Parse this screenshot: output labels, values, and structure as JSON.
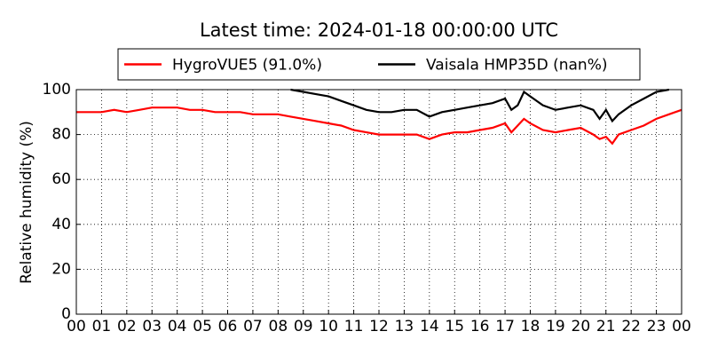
{
  "chart_data": {
    "type": "line",
    "title": "Latest time: 2024-01-18 00:00:00 UTC",
    "ylabel": "Relative humidity (%)",
    "x": [
      0,
      0.5,
      1,
      1.5,
      2,
      2.5,
      3,
      3.5,
      4,
      4.5,
      5,
      5.5,
      6,
      6.5,
      7,
      7.5,
      8,
      8.5,
      9,
      9.5,
      10,
      10.5,
      11,
      11.5,
      12,
      12.5,
      13,
      13.5,
      14,
      14.5,
      15,
      15.5,
      16,
      16.5,
      17,
      17.25,
      17.5,
      17.75,
      18,
      18.5,
      19,
      19.5,
      20,
      20.5,
      20.75,
      21,
      21.25,
      21.5,
      22,
      22.5,
      23,
      23.5,
      24
    ],
    "series": [
      {
        "name": "HygroVUE5 (91.0%)",
        "color": "#ff0000",
        "values": [
          90,
          90,
          90,
          91,
          90,
          91,
          92,
          92,
          92,
          91,
          91,
          90,
          90,
          90,
          89,
          89,
          89,
          88,
          87,
          86,
          85,
          84,
          82,
          81,
          80,
          80,
          80,
          80,
          78,
          80,
          81,
          81,
          82,
          83,
          85,
          81,
          84,
          87,
          85,
          82,
          81,
          82,
          83,
          80,
          78,
          79,
          76,
          80,
          82,
          84,
          87,
          89,
          91
        ]
      },
      {
        "name": "Vaisala HMP35D (nan%)",
        "color": "#000000",
        "values": [
          null,
          null,
          null,
          null,
          null,
          null,
          null,
          null,
          null,
          null,
          null,
          null,
          null,
          null,
          null,
          null,
          null,
          100,
          99,
          98,
          97,
          95,
          93,
          91,
          90,
          90,
          91,
          91,
          88,
          90,
          91,
          92,
          93,
          94,
          96,
          91,
          93,
          99,
          97,
          93,
          91,
          92,
          93,
          91,
          87,
          91,
          86,
          89,
          93,
          96,
          99,
          100,
          null
        ]
      }
    ],
    "xlim": [
      0,
      24
    ],
    "xticks": [
      {
        "value": 0,
        "label": "00"
      },
      {
        "value": 1,
        "label": "01"
      },
      {
        "value": 2,
        "label": "02"
      },
      {
        "value": 3,
        "label": "03"
      },
      {
        "value": 4,
        "label": "04"
      },
      {
        "value": 5,
        "label": "05"
      },
      {
        "value": 6,
        "label": "06"
      },
      {
        "value": 7,
        "label": "07"
      },
      {
        "value": 8,
        "label": "08"
      },
      {
        "value": 9,
        "label": "09"
      },
      {
        "value": 10,
        "label": "10"
      },
      {
        "value": 11,
        "label": "11"
      },
      {
        "value": 12,
        "label": "12"
      },
      {
        "value": 13,
        "label": "13"
      },
      {
        "value": 14,
        "label": "14"
      },
      {
        "value": 15,
        "label": "15"
      },
      {
        "value": 16,
        "label": "16"
      },
      {
        "value": 17,
        "label": "17"
      },
      {
        "value": 18,
        "label": "18"
      },
      {
        "value": 19,
        "label": "19"
      },
      {
        "value": 20,
        "label": "20"
      },
      {
        "value": 21,
        "label": "21"
      },
      {
        "value": 22,
        "label": "22"
      },
      {
        "value": 23,
        "label": "23"
      },
      {
        "value": 24,
        "label": "00"
      }
    ],
    "ylim": [
      0,
      100
    ],
    "yticks": [
      0,
      20,
      40,
      60,
      80,
      100
    ],
    "grid": true,
    "legend": "top"
  }
}
